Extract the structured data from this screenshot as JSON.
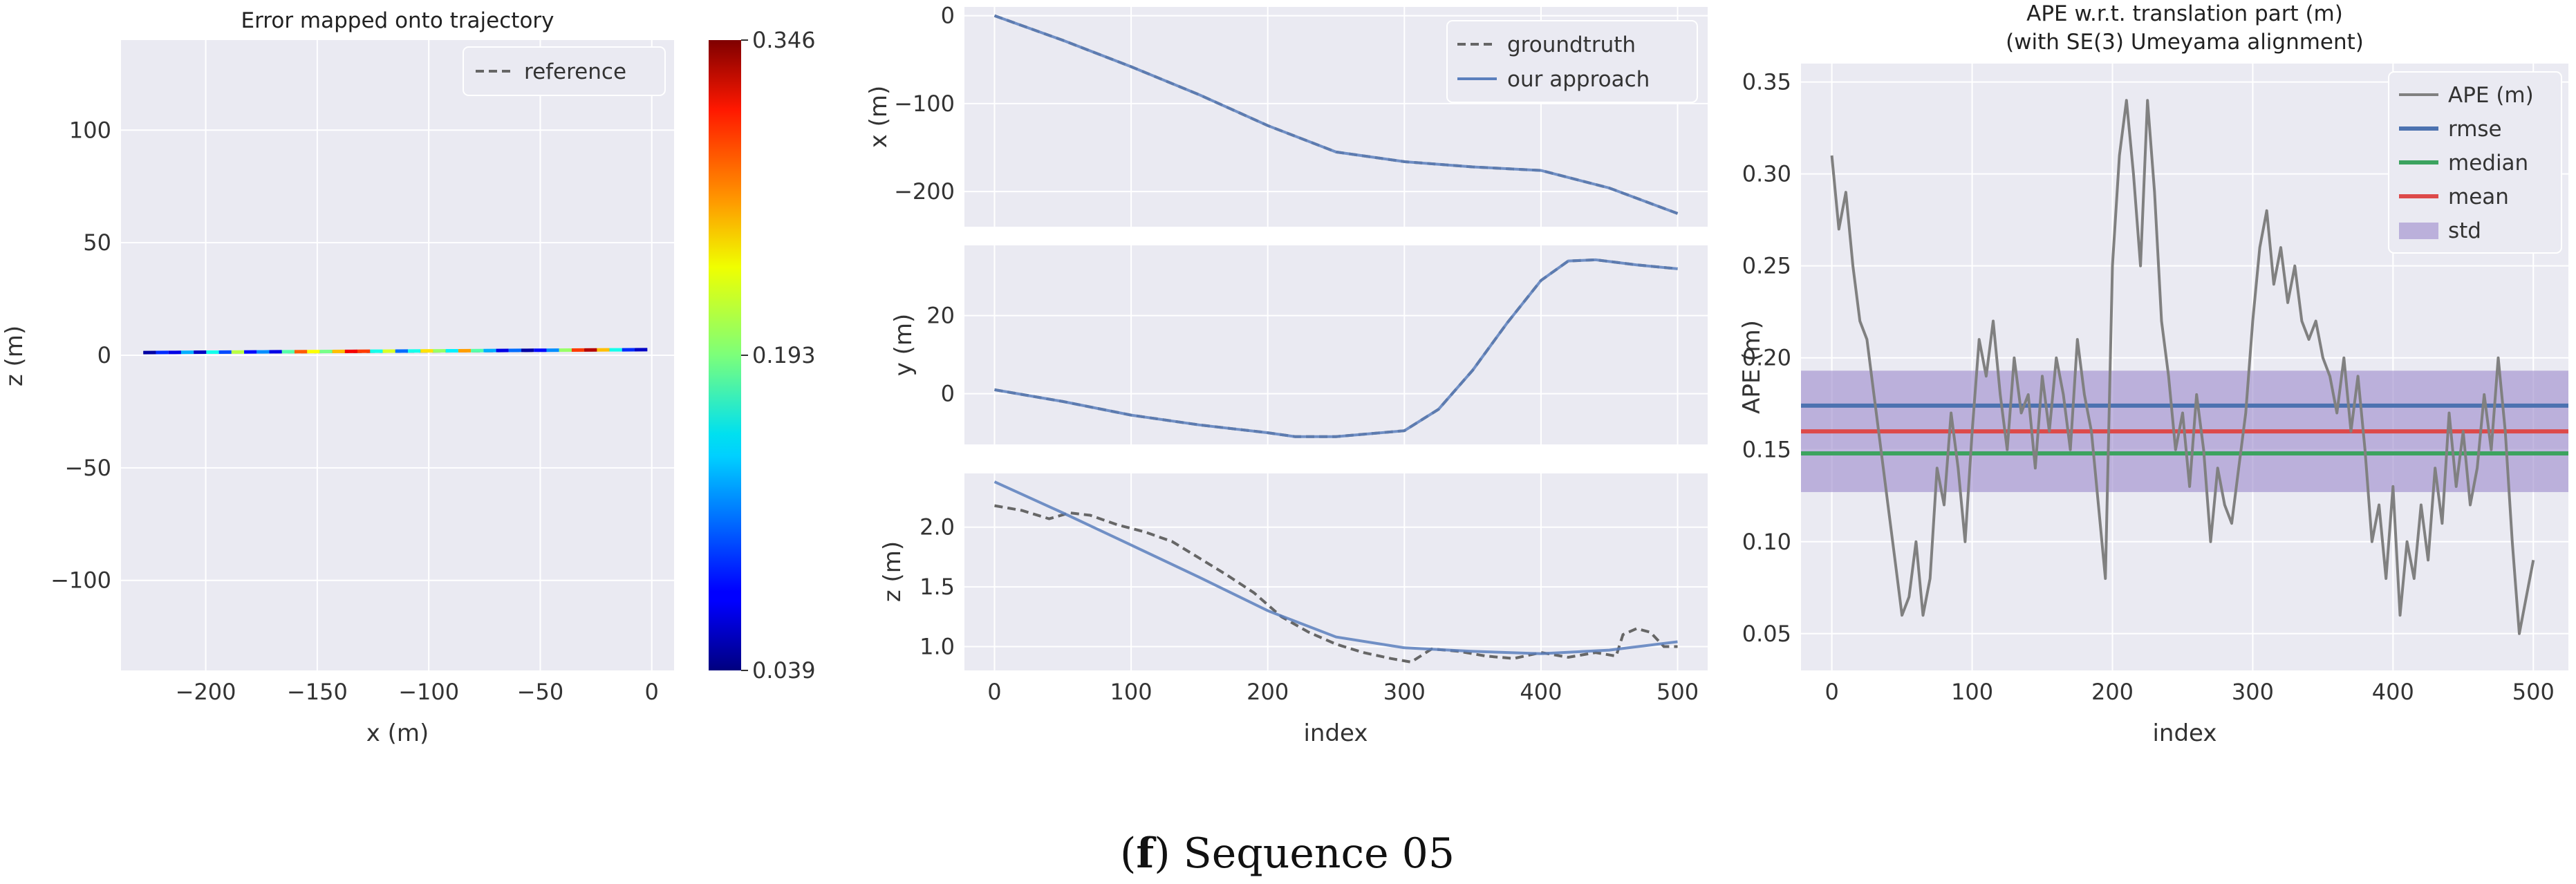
{
  "chart_data": [
    {
      "type": "line",
      "title": "Error mapped onto trajectory",
      "xlabel": "x (m)",
      "ylabel": "z (m)",
      "xlim": [
        -238,
        10
      ],
      "ylim": [
        -140,
        140
      ],
      "xticks": [
        -200,
        -150,
        -100,
        -50,
        0
      ],
      "yticks": [
        -100,
        -50,
        0,
        50,
        100
      ],
      "legend": [
        "reference"
      ],
      "series": [
        {
          "name": "reference",
          "x": [
            -228,
            -150,
            -75,
            -2
          ],
          "y": [
            1.2,
            1.5,
            1.9,
            2.5
          ]
        }
      ],
      "error_segments": {
        "x_start": -228,
        "x_end": -2,
        "z_start": 1.2,
        "z_end": 2.5,
        "values": [
          0.05,
          0.09,
          0.07,
          0.13,
          0.06,
          0.16,
          0.1,
          0.21,
          0.08,
          0.12,
          0.07,
          0.18,
          0.28,
          0.23,
          0.19,
          0.25,
          0.31,
          0.29,
          0.16,
          0.22,
          0.11,
          0.16,
          0.24,
          0.2,
          0.15,
          0.26,
          0.18,
          0.13,
          0.07,
          0.11,
          0.05,
          0.08,
          0.12,
          0.2,
          0.29,
          0.33,
          0.25,
          0.16,
          0.09,
          0.06
        ]
      },
      "colorbar": {
        "min": 0.039,
        "max": 0.346,
        "tick_labels": [
          "0.346",
          "0.193",
          "0.039"
        ]
      }
    },
    {
      "type": "line",
      "subplots": [
        {
          "ylabel": "x (m)",
          "ylim": [
            -240,
            10
          ],
          "yticks": [
            0,
            -100,
            -200
          ],
          "series": [
            {
              "name": "groundtruth",
              "x": [
                0,
                50,
                100,
                150,
                200,
                250,
                300,
                350,
                400,
                450,
                500
              ],
              "y": [
                0,
                -28,
                -58,
                -90,
                -125,
                -155,
                -166,
                -172,
                -176,
                -196,
                -225
              ]
            },
            {
              "name": "our approach",
              "x": [
                0,
                50,
                100,
                150,
                200,
                250,
                300,
                350,
                400,
                450,
                500
              ],
              "y": [
                0,
                -28,
                -58,
                -90,
                -125,
                -155,
                -166,
                -172,
                -176,
                -196,
                -225
              ]
            }
          ]
        },
        {
          "ylabel": "y (m)",
          "ylim": [
            -13,
            38
          ],
          "yticks": [
            20,
            0
          ],
          "series": [
            {
              "name": "groundtruth",
              "x": [
                0,
                50,
                100,
                150,
                200,
                220,
                250,
                300,
                325,
                350,
                375,
                400,
                420,
                440,
                470,
                500
              ],
              "y": [
                1,
                -2,
                -5.5,
                -8,
                -10,
                -11,
                -11,
                -9.5,
                -4,
                6,
                18,
                29,
                34,
                34.3,
                33,
                32
              ]
            },
            {
              "name": "our approach",
              "x": [
                0,
                50,
                100,
                150,
                200,
                220,
                250,
                300,
                325,
                350,
                375,
                400,
                420,
                440,
                470,
                500
              ],
              "y": [
                1,
                -2,
                -5.5,
                -8,
                -10,
                -11,
                -11,
                -9.5,
                -4,
                6,
                18,
                29,
                34,
                34.3,
                33,
                32
              ]
            }
          ]
        },
        {
          "ylabel": "z (m)",
          "ylim": [
            0.8,
            2.45
          ],
          "yticks": [
            2.0,
            1.5,
            1.0
          ],
          "yticklabels": [
            "2.0",
            "1.5",
            "1.0"
          ],
          "series": [
            {
              "name": "groundtruth",
              "x": [
                0,
                20,
                40,
                55,
                70,
                90,
                110,
                130,
                150,
                170,
                190,
                210,
                230,
                250,
                270,
                290,
                305,
                320,
                340,
                360,
                380,
                400,
                420,
                440,
                455,
                460,
                470,
                480,
                490,
                500
              ],
              "y": [
                2.18,
                2.14,
                2.07,
                2.12,
                2.1,
                2.02,
                1.96,
                1.88,
                1.74,
                1.6,
                1.45,
                1.25,
                1.12,
                1.02,
                0.95,
                0.9,
                0.87,
                0.98,
                0.96,
                0.92,
                0.9,
                0.95,
                0.91,
                0.95,
                0.92,
                1.1,
                1.15,
                1.12,
                1.0,
                1.0
              ]
            },
            {
              "name": "our approach",
              "x": [
                0,
                50,
                100,
                150,
                200,
                250,
                300,
                350,
                400,
                450,
                500
              ],
              "y": [
                2.38,
                2.12,
                1.85,
                1.58,
                1.3,
                1.08,
                0.99,
                0.96,
                0.94,
                0.97,
                1.04
              ]
            }
          ]
        }
      ],
      "xlabel": "index",
      "xlim": [
        -22,
        522
      ],
      "xticks": [
        0,
        100,
        200,
        300,
        400,
        500
      ],
      "legend": [
        "groundtruth",
        "our approach"
      ]
    },
    {
      "type": "line",
      "title": "APE w.r.t. translation part (m)",
      "subtitle": "(with SE(3) Umeyama alignment)",
      "xlabel": "index",
      "ylabel": "APE (m)",
      "xlim": [
        -22,
        525
      ],
      "ylim": [
        0.03,
        0.36
      ],
      "xticks": [
        0,
        100,
        200,
        300,
        400,
        500
      ],
      "yticks": [
        0.05,
        0.1,
        0.15,
        0.2,
        0.25,
        0.3,
        0.35
      ],
      "yticklabels": [
        "0.05",
        "0.10",
        "0.15",
        "0.20",
        "0.25",
        "0.30",
        "0.35"
      ],
      "legend": [
        "APE (m)",
        "rmse",
        "median",
        "mean",
        "std"
      ],
      "rmse": 0.174,
      "median": 0.148,
      "mean": 0.16,
      "std_band": [
        0.127,
        0.193
      ],
      "series": [
        {
          "name": "APE (m)",
          "x": [
            0,
            5,
            10,
            15,
            20,
            25,
            30,
            35,
            40,
            45,
            50,
            55,
            60,
            65,
            70,
            75,
            80,
            85,
            90,
            95,
            100,
            105,
            110,
            115,
            120,
            125,
            130,
            135,
            140,
            145,
            150,
            155,
            160,
            165,
            170,
            175,
            180,
            185,
            190,
            195,
            200,
            205,
            210,
            215,
            220,
            225,
            230,
            235,
            240,
            245,
            250,
            255,
            260,
            265,
            270,
            275,
            280,
            285,
            290,
            295,
            300,
            305,
            310,
            315,
            320,
            325,
            330,
            335,
            340,
            345,
            350,
            355,
            360,
            365,
            370,
            375,
            380,
            385,
            390,
            395,
            400,
            405,
            410,
            415,
            420,
            425,
            430,
            435,
            440,
            445,
            450,
            455,
            460,
            465,
            470,
            475,
            480,
            485,
            490,
            495,
            500
          ],
          "y": [
            0.31,
            0.27,
            0.29,
            0.25,
            0.22,
            0.21,
            0.18,
            0.15,
            0.12,
            0.09,
            0.06,
            0.07,
            0.1,
            0.06,
            0.08,
            0.14,
            0.12,
            0.17,
            0.14,
            0.1,
            0.16,
            0.21,
            0.19,
            0.22,
            0.18,
            0.15,
            0.2,
            0.17,
            0.18,
            0.14,
            0.19,
            0.16,
            0.2,
            0.18,
            0.15,
            0.21,
            0.18,
            0.16,
            0.12,
            0.08,
            0.25,
            0.31,
            0.34,
            0.3,
            0.25,
            0.34,
            0.29,
            0.22,
            0.19,
            0.15,
            0.17,
            0.13,
            0.18,
            0.15,
            0.1,
            0.14,
            0.12,
            0.11,
            0.14,
            0.17,
            0.22,
            0.26,
            0.28,
            0.24,
            0.26,
            0.23,
            0.25,
            0.22,
            0.21,
            0.22,
            0.2,
            0.19,
            0.17,
            0.2,
            0.16,
            0.19,
            0.15,
            0.1,
            0.12,
            0.08,
            0.13,
            0.06,
            0.1,
            0.08,
            0.12,
            0.09,
            0.14,
            0.11,
            0.17,
            0.13,
            0.16,
            0.12,
            0.14,
            0.18,
            0.15,
            0.2,
            0.16,
            0.1,
            0.05,
            0.07,
            0.09
          ]
        }
      ]
    }
  ],
  "caption": {
    "label": "f",
    "text": " Sequence 05"
  },
  "colors": {
    "panel_bg": "#eaeaf2",
    "grid": "#ffffff",
    "traj": "#5b7fbd",
    "groundtruth": "#666666",
    "ape": "#808080",
    "rmse": "#4c72b0",
    "median": "#3ca35f",
    "mean": "#dd4a4a",
    "std": "#9b88cc"
  }
}
